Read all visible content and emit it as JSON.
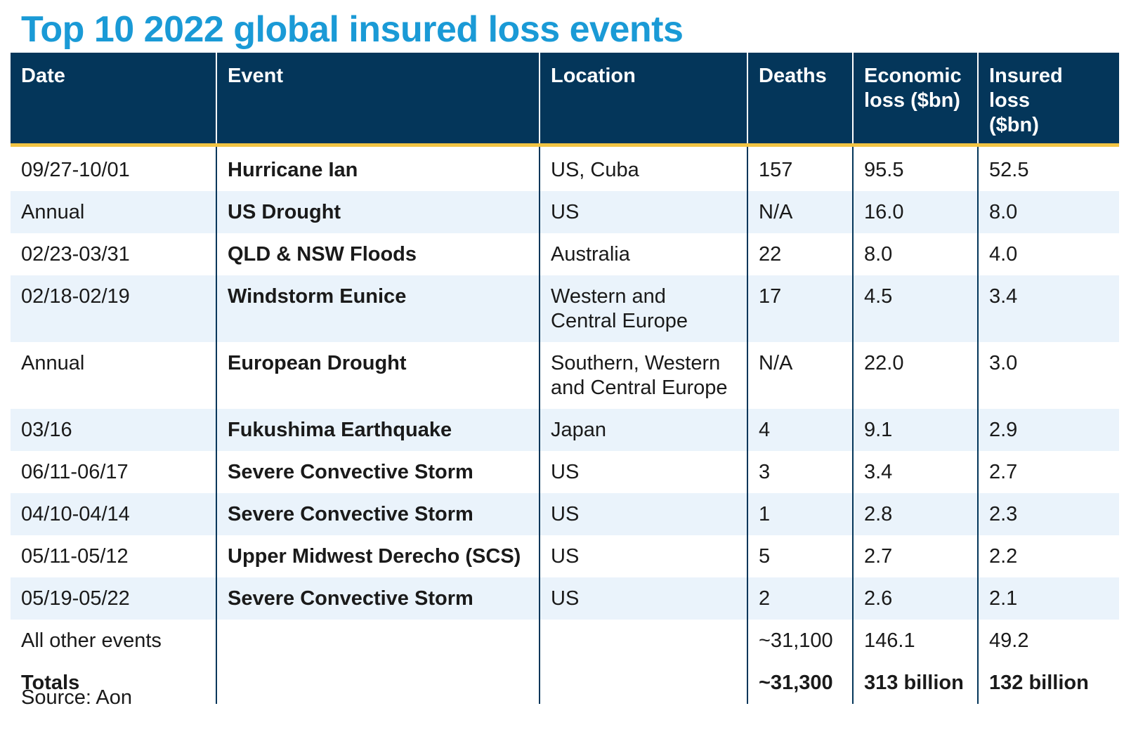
{
  "title": "Top 10 2022 global insured loss events",
  "colors": {
    "title": "#1a9ad6",
    "header_bg": "#04365a",
    "header_rule": "#f2c443",
    "stripe": "#eaf3fb"
  },
  "chart_data": {
    "type": "table",
    "title": "Top 10 2022 global insured loss events",
    "columns": [
      "Date",
      "Event",
      "Location",
      "Deaths",
      "Economic loss ($bn)",
      "Insured loss ($bn)"
    ],
    "rows": [
      {
        "date": "09/27-10/01",
        "event": "Hurricane Ian",
        "location": [
          "US, Cuba"
        ],
        "deaths": "157",
        "economic_loss": "95.5",
        "insured_loss": "52.5"
      },
      {
        "date": "Annual",
        "event": "US Drought",
        "location": [
          "US"
        ],
        "deaths": "N/A",
        "economic_loss": "16.0",
        "insured_loss": "8.0"
      },
      {
        "date": "02/23-03/31",
        "event": "QLD & NSW Floods",
        "location": [
          "Australia"
        ],
        "deaths": "22",
        "economic_loss": "8.0",
        "insured_loss": "4.0"
      },
      {
        "date": "02/18-02/19",
        "event": "Windstorm Eunice",
        "location": [
          "Western and",
          "Central Europe"
        ],
        "deaths": "17",
        "economic_loss": "4.5",
        "insured_loss": "3.4"
      },
      {
        "date": "Annual",
        "event": "European Drought",
        "location": [
          "Southern, Western",
          "and Central Europe"
        ],
        "deaths": "N/A",
        "economic_loss": "22.0",
        "insured_loss": "3.0"
      },
      {
        "date": "03/16",
        "event": "Fukushima Earthquake",
        "location": [
          "Japan"
        ],
        "deaths": "4",
        "economic_loss": "9.1",
        "insured_loss": "2.9"
      },
      {
        "date": "06/11-06/17",
        "event": "Severe Convective Storm",
        "location": [
          "US"
        ],
        "deaths": "3",
        "economic_loss": "3.4",
        "insured_loss": "2.7"
      },
      {
        "date": "04/10-04/14",
        "event": "Severe Convective Storm",
        "location": [
          "US"
        ],
        "deaths": "1",
        "economic_loss": "2.8",
        "insured_loss": "2.3"
      },
      {
        "date": "05/11-05/12",
        "event": "Upper Midwest Derecho (SCS)",
        "location": [
          "US"
        ],
        "deaths": "5",
        "economic_loss": "2.7",
        "insured_loss": "2.2"
      },
      {
        "date": "05/19-05/22",
        "event": "Severe Convective Storm",
        "location": [
          "US"
        ],
        "deaths": "2",
        "economic_loss": "2.6",
        "insured_loss": "2.1"
      }
    ],
    "other": {
      "label": "All other events",
      "deaths": "~31,100",
      "economic_loss": "146.1",
      "insured_loss": "49.2"
    },
    "totals": {
      "label": "Totals",
      "deaths": "~31,300",
      "economic_loss": "313 billion",
      "insured_loss": "132 billion"
    }
  },
  "header": {
    "date": "Date",
    "event": "Event",
    "location": "Location",
    "deaths": "Deaths",
    "economic_loss": [
      "Economic",
      "loss ($bn)"
    ],
    "insured_loss": [
      "Insured loss",
      "($bn)"
    ]
  },
  "source": "Source: Aon"
}
